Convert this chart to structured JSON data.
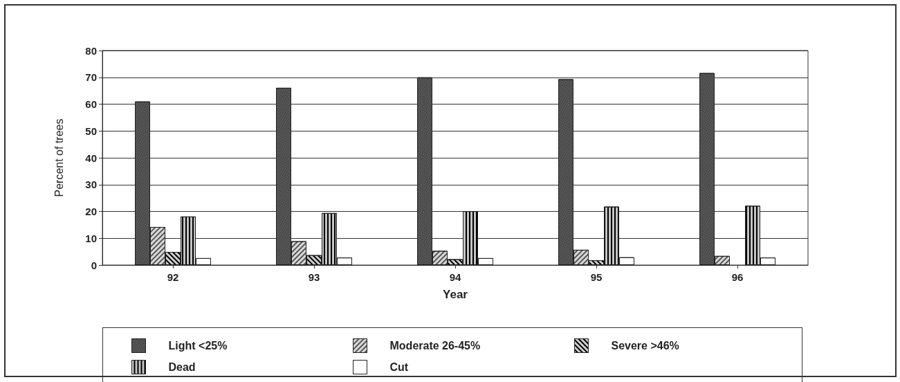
{
  "chart_data": {
    "type": "bar",
    "xlabel": "Year",
    "ylabel": "Percent of trees",
    "categories": [
      "92",
      "93",
      "94",
      "95",
      "96"
    ],
    "series": [
      {
        "name": "Light <25%",
        "color": "#555555",
        "values": [
          61.0,
          66.1,
          70.0,
          69.3,
          71.6
        ]
      },
      {
        "name": "Moderate 26-45%",
        "color": "#d9d9d9",
        "values": [
          14.2,
          8.9,
          5.3,
          5.7,
          3.4
        ]
      },
      {
        "name": "Severe >46%",
        "color": "#d0d0d0",
        "values": [
          4.9,
          3.7,
          2.2,
          1.8,
          0
        ]
      },
      {
        "name": "Dead",
        "color": "#c4c4c4",
        "values": [
          18.1,
          19.4,
          20.1,
          21.8,
          22.1
        ]
      },
      {
        "name": "Cut",
        "color": "#ffffff",
        "values": [
          2.6,
          2.8,
          2.6,
          2.9,
          2.8
        ]
      }
    ],
    "ylim": [
      0,
      80
    ],
    "yticks": [
      0,
      10,
      20,
      30,
      40,
      50,
      60,
      70,
      80
    ],
    "grid": "y",
    "legend": "bottom"
  }
}
